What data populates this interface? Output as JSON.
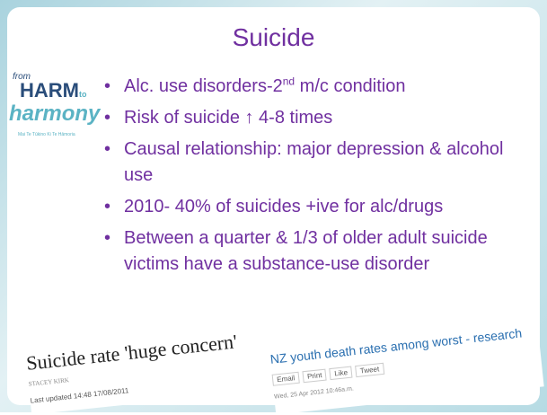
{
  "logo": {
    "from": "from",
    "harm": "HARM",
    "to": "to",
    "harmony": "harmony",
    "tagline": "Mai Te Tūkino Ki Te Hāmoria"
  },
  "slide": {
    "title": "Suicide",
    "bullet_sup": {
      "before": "Alc. use disorders-2",
      "sup": "nd",
      "after": " m/c condition"
    },
    "bullets": [
      "Risk  of suicide ↑ 4-8 times",
      "Causal relationship: major depression & alcohol use",
      "2010- 40% of suicides +ive for alc/drugs",
      "Between a quarter & 1/3 of older adult suicide victims have a substance-use disorder"
    ]
  },
  "clipping_1": {
    "headline": "Suicide rate 'huge concern'",
    "byline": "STACEY KIRK",
    "updated": "Last updated 14:48 17/08/2011"
  },
  "clipping_2": {
    "headline": "NZ youth death rates among worst - research",
    "buttons": [
      "Email",
      "Print",
      "Like",
      "Tweet"
    ],
    "date": "Wed, 25 Apr 2012 10:46a.m."
  }
}
